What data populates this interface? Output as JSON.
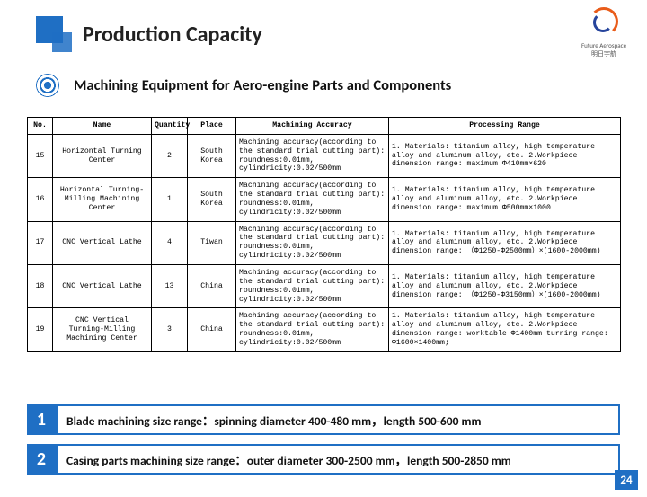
{
  "header": {
    "title": "Production Capacity",
    "subtitle": "Machining Equipment for Aero-engine Parts and Components",
    "logo_caption": "Future Aerospace\n明日宇航"
  },
  "accent_color": "#1f6fc4",
  "table": {
    "columns": [
      "No.",
      "Name",
      "Quantity",
      "Place",
      "Machining Accuracy",
      "Processing Range"
    ],
    "rows": [
      {
        "no": "15",
        "name": "Horizontal Turning Center",
        "qty": "2",
        "place": "South Korea",
        "accuracy": "Machining accuracy(according to the standard trial cutting part): roundness:0.01mm, cylindricity:0.02/500mm",
        "range": "1. Materials: titanium alloy, high temperature alloy and aluminum alloy, etc.        2.Workpiece dimension range: maximum Φ410mm×620"
      },
      {
        "no": "16",
        "name": "Horizontal Turning-Milling Machining Center",
        "qty": "1",
        "place": "South Korea",
        "accuracy": "Machining accuracy(according to the standard trial cutting part): roundness:0.01mm, cylindricity:0.02/500mm",
        "range": "1. Materials: titanium alloy, high temperature alloy and aluminum alloy, etc.        2.Workpiece dimension range: maximum Φ500mm×1000"
      },
      {
        "no": "17",
        "name": "CNC Vertical Lathe",
        "qty": "4",
        "place": "Tiwan",
        "accuracy": "Machining accuracy(according to the standard trial cutting part): roundness:0.01mm, cylindricity:0.02/500mm",
        "range": "1. Materials: titanium alloy, high temperature alloy and aluminum alloy, etc.        2.Workpiece dimension range: （Φ1250-Φ2500mm）×(1600-2000mm)"
      },
      {
        "no": "18",
        "name": "CNC Vertical Lathe",
        "qty": "13",
        "place": "China",
        "accuracy": "Machining accuracy(according to the standard trial cutting part): roundness:0.01mm, cylindricity:0.02/500mm",
        "range": "1. Materials: titanium alloy, high temperature alloy and aluminum alloy, etc.        2.Workpiece dimension range: （Φ1250-Φ3150mm）×(1600-2000mm)"
      },
      {
        "no": "19",
        "name": "CNC Vertical Turning-Milling Machining Center",
        "qty": "3",
        "place": "China",
        "accuracy": "Machining accuracy(according to the standard trial cutting part): roundness:0.01mm, cylindricity:0.02/500mm",
        "range": "1. Materials: titanium alloy, high temperature alloy and aluminum alloy, etc.        2.Workpiece dimension range: worktable Φ1400mm      turning range: Φ1600×1400mm;"
      }
    ]
  },
  "callouts": [
    {
      "num": "1",
      "text": "Blade machining size range：spinning diameter 400-480 mm，length 500-600 mm"
    },
    {
      "num": "2",
      "text": "Casing parts machining size range：outer diameter 300-2500 mm，length 500-2850 mm"
    }
  ],
  "page_number": "24"
}
